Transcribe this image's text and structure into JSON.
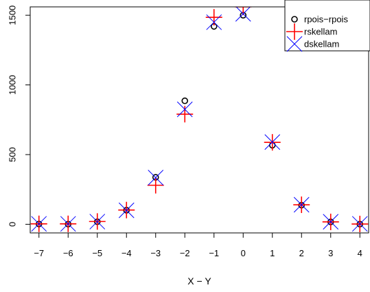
{
  "chart_data": {
    "type": "scatter",
    "title": "",
    "xlabel": "X − Y",
    "ylabel": "",
    "xlim": [
      -7.3,
      4.3
    ],
    "ylim": [
      -62,
      1560
    ],
    "x_ticks": [
      -7,
      -6,
      -5,
      -4,
      -3,
      -2,
      -1,
      0,
      1,
      2,
      3,
      4
    ],
    "x_tick_labels": [
      "−7",
      "−6",
      "−5",
      "−4",
      "−3",
      "−2",
      "−1",
      "0",
      "1",
      "2",
      "3",
      "4"
    ],
    "y_ticks": [
      0,
      500,
      1000,
      1500
    ],
    "y_tick_labels": [
      "0",
      "500",
      "1000",
      "1500"
    ],
    "grid": false,
    "legend_position": "top-right",
    "x": [
      -7,
      -6,
      -5,
      -4,
      -3,
      -2,
      -1,
      0,
      1,
      2,
      3,
      4
    ],
    "series": [
      {
        "name": "rpois−rpois",
        "marker": "circle",
        "color": "#000000",
        "values": [
          2,
          1,
          18,
          101,
          337,
          886,
          1420,
          1500,
          567,
          137,
          17,
          1
        ]
      },
      {
        "name": "rskellam",
        "marker": "plus",
        "color": "#ff0000",
        "values": [
          3,
          3,
          20,
          102,
          280,
          790,
          1485,
          1560,
          588,
          140,
          17,
          2
        ]
      },
      {
        "name": "dskellam",
        "marker": "cross",
        "color": "#0000ff",
        "values": [
          3,
          3,
          19,
          100,
          335,
          825,
          1450,
          1510,
          590,
          140,
          18,
          3
        ]
      }
    ]
  }
}
